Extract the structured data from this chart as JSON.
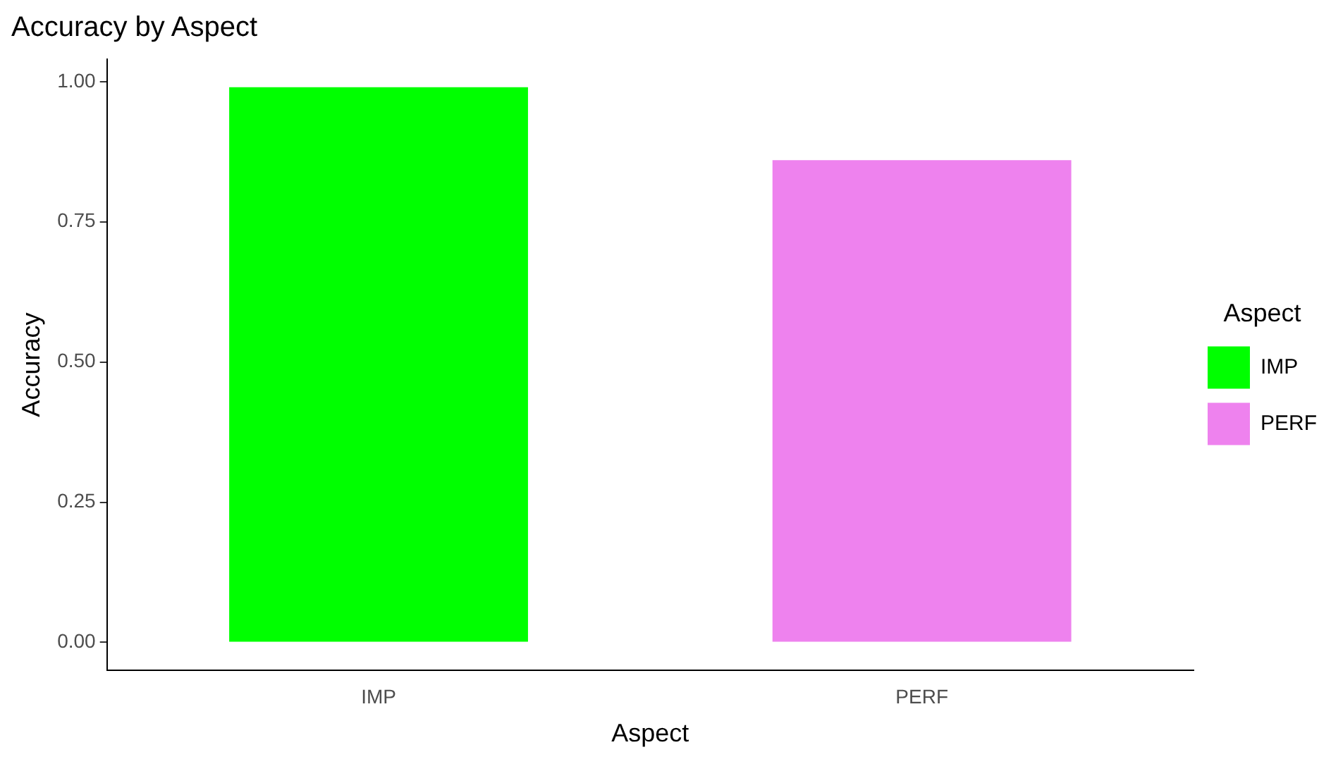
{
  "chart_data": {
    "type": "bar",
    "title": "Accuracy by Aspect",
    "xlabel": "Aspect",
    "ylabel": "Accuracy",
    "legend_title": "Aspect",
    "categories": [
      "IMP",
      "PERF"
    ],
    "series": [
      {
        "name": "IMP",
        "color": "#00ff00",
        "values": [
          0.99,
          null
        ]
      },
      {
        "name": "PERF",
        "color": "#ee82ee",
        "values": [
          null,
          0.86
        ]
      }
    ],
    "ylim": [
      -0.05,
      1.04
    ],
    "yticks": [
      {
        "value": 0,
        "label": "0.00"
      },
      {
        "value": 0.25,
        "label": "0.25"
      },
      {
        "value": 0.5,
        "label": "0.50"
      },
      {
        "value": 0.75,
        "label": "0.75"
      },
      {
        "value": 1,
        "label": "1.00"
      }
    ],
    "grid": false,
    "legend": "right"
  }
}
